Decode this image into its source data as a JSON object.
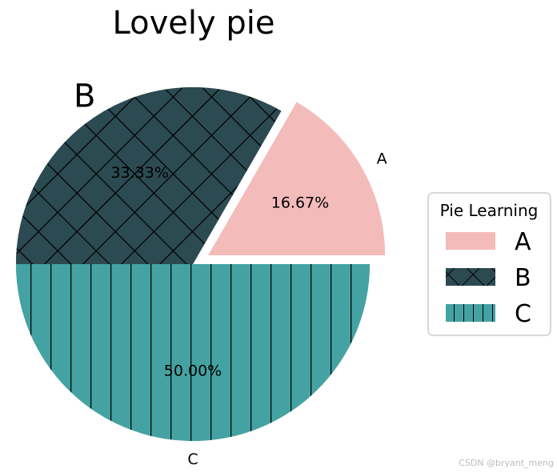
{
  "chart_data": {
    "type": "pie",
    "title": "Lovely pie",
    "categories": [
      "A",
      "B",
      "C"
    ],
    "values": [
      1,
      2,
      3
    ],
    "percent_labels": [
      "16.67%",
      "33.33%",
      "50.00%"
    ],
    "colors": [
      "#f4bbbb",
      "#2c4a52",
      "#45a2a3"
    ],
    "hatches": [
      "none",
      "cross",
      "vertical"
    ],
    "explode": [
      0.1,
      0,
      0
    ],
    "start_angle_deg": 0,
    "slice_labels": [
      "A",
      "B",
      "C"
    ],
    "legend": {
      "title": "Pie Learning",
      "entries": [
        "A",
        "B",
        "C"
      ],
      "placement": "center-right"
    }
  },
  "watermark": "CSDN @bryant_meng"
}
